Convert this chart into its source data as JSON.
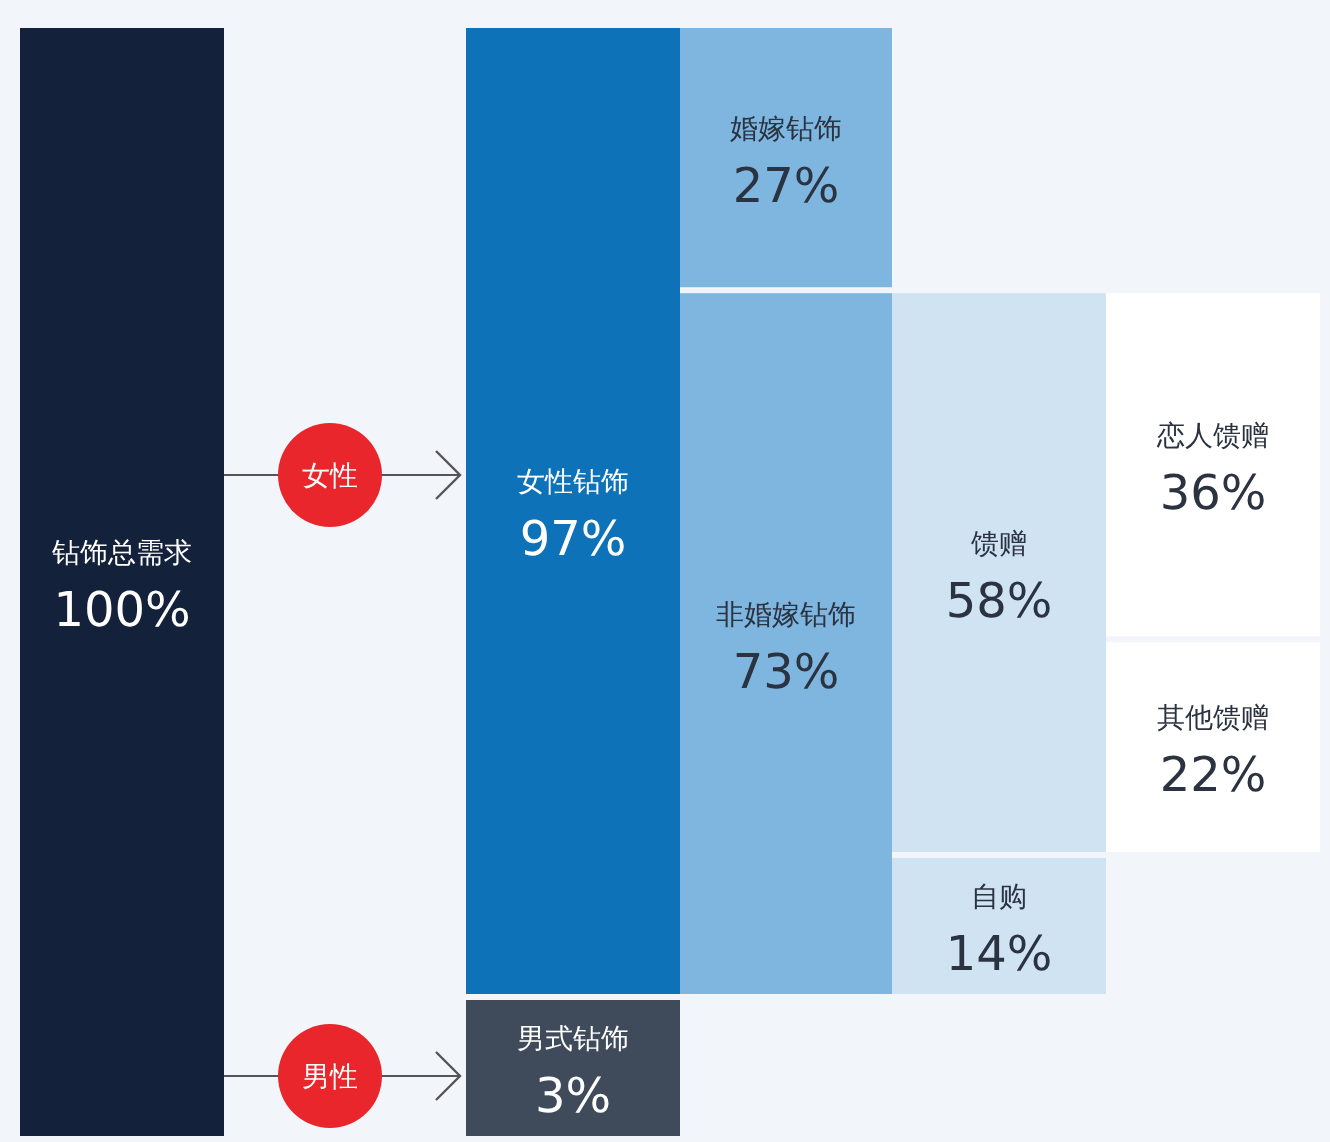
{
  "chart_data": {
    "type": "other",
    "categories": [
      "钻饰总需求",
      "女性钻饰",
      "男式钻饰",
      "婚嫁钻饰",
      "非婚嫁钻饰",
      "馈赠",
      "自购",
      "恋人馈赠",
      "其他馈赠"
    ],
    "values": [
      100,
      97,
      3,
      27,
      73,
      58,
      14,
      36,
      22
    ],
    "value_labels": [
      "100%",
      "97%",
      "3%",
      "27%",
      "73%",
      "58%",
      "14%",
      "36%",
      "22%"
    ],
    "colors": [
      "#13213a",
      "#0e72b8",
      "#3f4a5a",
      "#7eb6e0",
      "#7eb6e0",
      "#cfe3f2",
      "#cfe3f2",
      "#ffffff",
      "#ffffff"
    ],
    "annotations": [
      "女性",
      "男性"
    ]
  }
}
